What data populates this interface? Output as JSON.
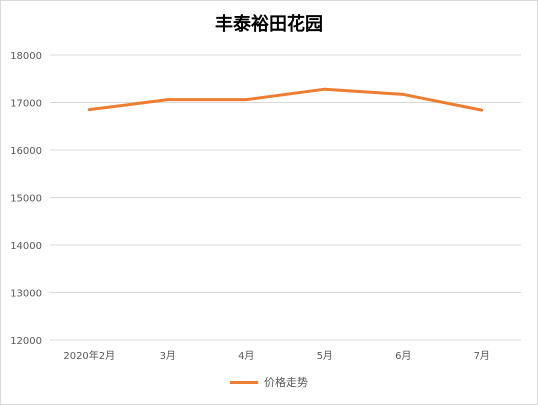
{
  "chart_data": {
    "type": "line",
    "title": "丰泰裕田花园",
    "categories": [
      "2020年2月",
      "3月",
      "4月",
      "5月",
      "6月",
      "7月"
    ],
    "series": [
      {
        "name": "价格走势",
        "values": [
          16850,
          17060,
          17060,
          17280,
          17170,
          16840
        ],
        "color": "#ed7d31"
      }
    ],
    "ylim": [
      12000,
      18000
    ],
    "yticks": [
      "12000",
      "13000",
      "14000",
      "15000",
      "16000",
      "17000",
      "18000"
    ],
    "grid": true,
    "gridColor": "#d9d9d9",
    "legend_position": "bottom"
  }
}
